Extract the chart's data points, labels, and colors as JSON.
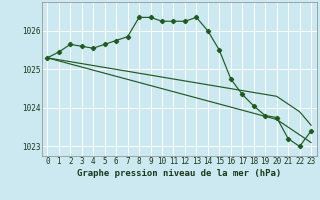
{
  "background_color": "#cce8f0",
  "grid_color": "#ffffff",
  "line_color": "#1e5c1e",
  "title": "Graphe pression niveau de la mer (hPa)",
  "title_fontsize": 6.5,
  "hours": [
    0,
    1,
    2,
    3,
    4,
    5,
    6,
    7,
    8,
    9,
    10,
    11,
    12,
    13,
    14,
    15,
    16,
    17,
    18,
    19,
    20,
    21,
    22,
    23
  ],
  "line1": [
    1025.3,
    1025.45,
    1025.65,
    1025.6,
    1025.55,
    1025.65,
    1025.75,
    1025.85,
    1026.35,
    1026.35,
    1026.25,
    1026.25,
    1026.25,
    1026.35,
    1026.0,
    1025.5,
    1024.75,
    1024.35,
    1024.05,
    1023.8,
    1023.75,
    1023.2,
    1023.0,
    1023.4
  ],
  "line2": [
    1025.3,
    1025.25,
    1025.2,
    1025.15,
    1025.1,
    1025.05,
    1025.0,
    1024.95,
    1024.9,
    1024.85,
    1024.8,
    1024.75,
    1024.7,
    1024.65,
    1024.6,
    1024.55,
    1024.5,
    1024.45,
    1024.4,
    1024.35,
    1024.3,
    1024.1,
    1023.9,
    1023.55
  ],
  "line3": [
    1025.3,
    1025.22,
    1025.14,
    1025.06,
    1024.98,
    1024.9,
    1024.82,
    1024.74,
    1024.66,
    1024.58,
    1024.5,
    1024.42,
    1024.34,
    1024.26,
    1024.18,
    1024.1,
    1024.02,
    1023.94,
    1023.86,
    1023.78,
    1023.7,
    1023.5,
    1023.3,
    1023.1
  ],
  "ylim_min": 1022.75,
  "ylim_max": 1026.75,
  "yticks": [
    1023,
    1024,
    1025,
    1026
  ],
  "tick_fontsize": 5.5,
  "label_fontsize": 6.5
}
